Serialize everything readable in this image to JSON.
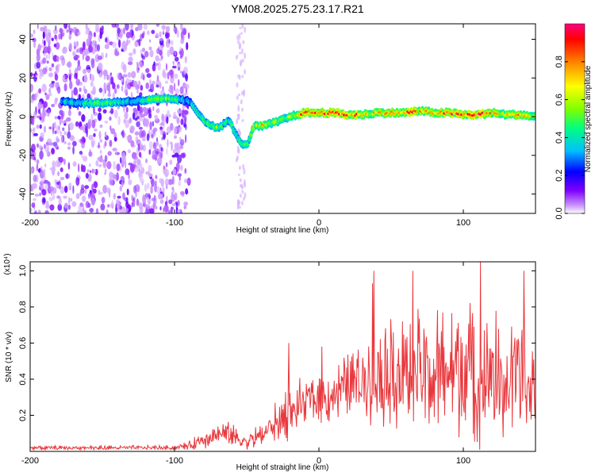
{
  "title": "YM08.2025.275.23.17.R21",
  "chart_data": [
    {
      "type": "heatmap",
      "name": "spectrogram",
      "xlabel": "Height of straight line (km)",
      "ylabel": "Frequency (Hz)",
      "xlim": [
        -200,
        150
      ],
      "ylim": [
        -50,
        48
      ],
      "xticks": [
        -200,
        -100,
        0,
        100
      ],
      "yticks": [
        -40,
        -20,
        0,
        20,
        40
      ],
      "colorbar": {
        "label": "Normalized spectral amplitude",
        "range": [
          0,
          1
        ],
        "ticks": [
          "0.0",
          "0.2",
          "0.4",
          "0.6",
          "0.8"
        ],
        "tick_values": [
          0.0,
          0.2,
          0.4,
          0.6,
          0.8
        ],
        "colors": [
          "#ffffff",
          "#cc99ff",
          "#8000ff",
          "#0000ff",
          "#00c0ff",
          "#00ff80",
          "#80ff00",
          "#ffff00",
          "#ff8000",
          "#ff0000",
          "#ff0080"
        ]
      },
      "ridge": {
        "x": [
          -178,
          -165,
          -150,
          -130,
          -110,
          -100,
          -90,
          -85,
          -78,
          -70,
          -62,
          -55,
          -50,
          -45,
          -40,
          -30,
          -20,
          -10,
          0,
          10,
          20,
          30,
          40,
          50,
          60,
          70,
          80,
          90,
          100,
          110,
          120,
          130,
          140,
          150
        ],
        "y": [
          8,
          7,
          7,
          8,
          9,
          9,
          8,
          3,
          -3,
          -6,
          -2,
          -13,
          -15,
          -5,
          -5,
          -3,
          0,
          2,
          2,
          2,
          1,
          1,
          2,
          2,
          2,
          3,
          2,
          2,
          1,
          1,
          2,
          1,
          1,
          0
        ],
        "amplitude": [
          0.35,
          0.4,
          0.55,
          0.35,
          0.6,
          0.5,
          0.3,
          0.45,
          0.5,
          0.55,
          0.45,
          0.45,
          0.5,
          0.65,
          0.7,
          0.6,
          0.6,
          0.85,
          0.9,
          0.95,
          0.85,
          0.8,
          0.7,
          0.75,
          0.9,
          0.8,
          0.7,
          0.9,
          0.85,
          0.95,
          0.75,
          0.7,
          0.8,
          0.6
        ]
      },
      "noise_region": [
        -200,
        -90
      ]
    },
    {
      "type": "line",
      "name": "snr",
      "xlabel": "Height of straight line (km)",
      "ylabel": "SNR (10 * v/v)",
      "multiplier_label": "(x10⁴)",
      "xlim": [
        -200,
        150
      ],
      "ylim": [
        0,
        1.05
      ],
      "xticks": [
        -200,
        -100,
        0,
        100
      ],
      "yticks": [
        "0.2",
        "0.4",
        "0.6",
        "0.8",
        "1.0"
      ],
      "ytick_values": [
        0.2,
        0.4,
        0.6,
        0.8,
        1.0
      ],
      "color": "#e8383d",
      "envelope": {
        "x": [
          -200,
          -150,
          -100,
          -90,
          -80,
          -70,
          -60,
          -50,
          -40,
          -30,
          -20,
          -10,
          0,
          10,
          20,
          30,
          35,
          40,
          50,
          60,
          70,
          80,
          90,
          100,
          110,
          120,
          130,
          140,
          150
        ],
        "mean": [
          0.02,
          0.02,
          0.02,
          0.03,
          0.07,
          0.1,
          0.09,
          0.05,
          0.09,
          0.16,
          0.22,
          0.27,
          0.3,
          0.32,
          0.37,
          0.4,
          0.42,
          0.45,
          0.47,
          0.43,
          0.45,
          0.42,
          0.45,
          0.45,
          0.4,
          0.42,
          0.37,
          0.38,
          0.33
        ],
        "spread": [
          0.008,
          0.01,
          0.01,
          0.02,
          0.04,
          0.05,
          0.05,
          0.03,
          0.06,
          0.09,
          0.12,
          0.1,
          0.1,
          0.12,
          0.13,
          0.16,
          0.2,
          0.25,
          0.25,
          0.25,
          0.27,
          0.27,
          0.27,
          0.27,
          0.3,
          0.28,
          0.27,
          0.27,
          0.27
        ]
      },
      "peaks": [
        {
          "x": -21,
          "y": 0.6
        },
        {
          "x": 2,
          "y": 0.58
        },
        {
          "x": 37,
          "y": 0.93
        },
        {
          "x": 38,
          "y": 1.0
        },
        {
          "x": 65,
          "y": 1.0
        },
        {
          "x": 112,
          "y": 1.05
        },
        {
          "x": 142,
          "y": 1.0
        }
      ]
    }
  ]
}
